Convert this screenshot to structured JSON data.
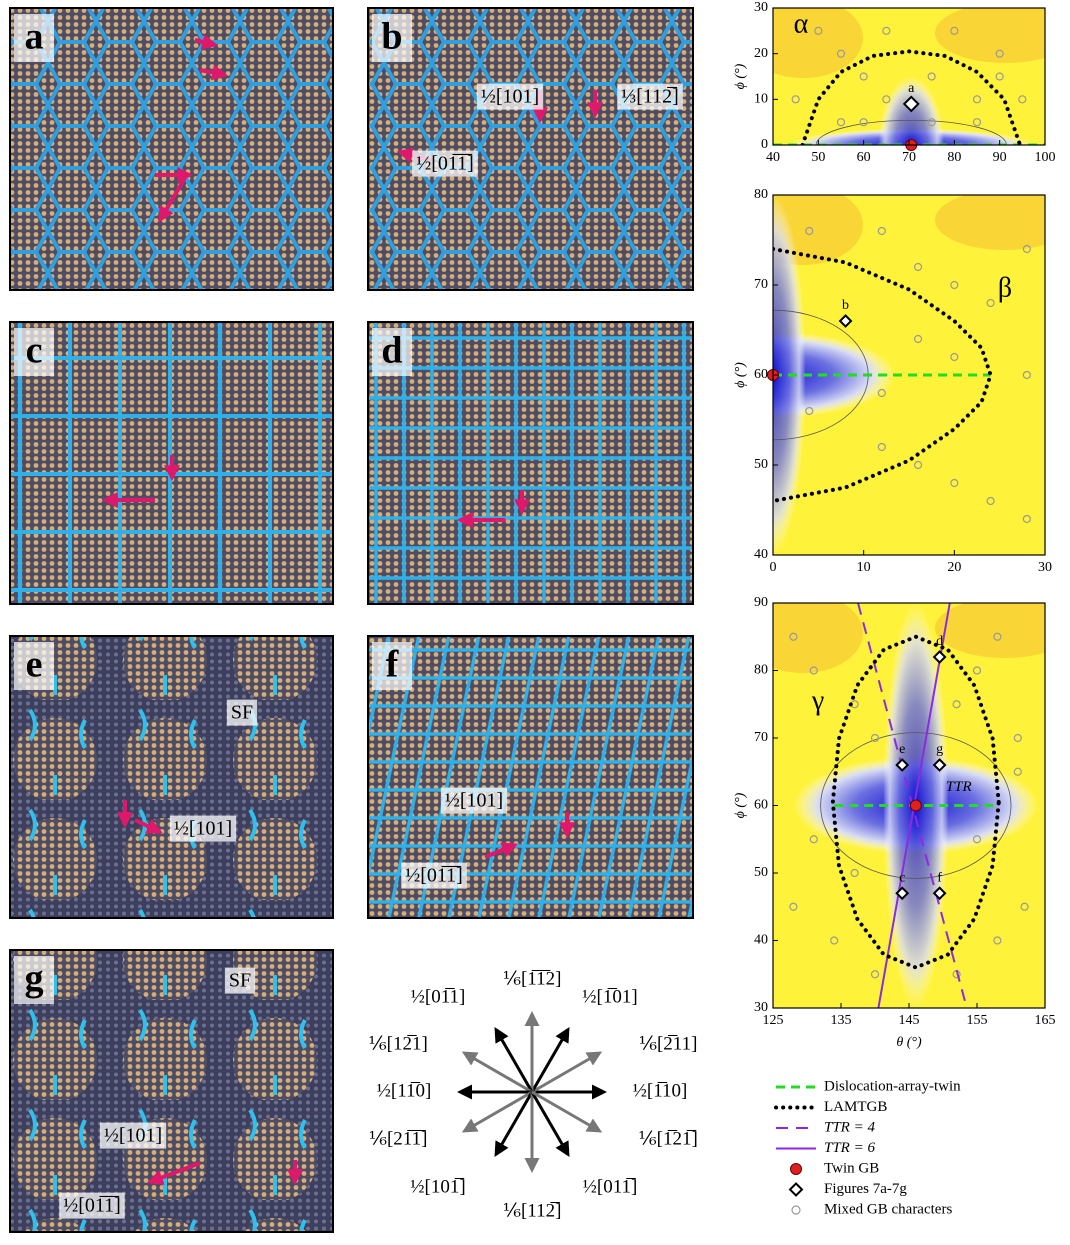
{
  "panels": [
    {
      "letter": "a",
      "labels": []
    },
    {
      "letter": "b",
      "labels": [
        "½[101]",
        "⅓[112̅]",
        "½[01̅1̅]"
      ]
    },
    {
      "letter": "c",
      "labels": []
    },
    {
      "letter": "d",
      "labels": []
    },
    {
      "letter": "e",
      "labels": [
        "SF",
        "½[101]"
      ]
    },
    {
      "letter": "f",
      "labels": [
        "½[101]",
        "½[01̅1̅]"
      ]
    },
    {
      "letter": "g",
      "labels": [
        "SF",
        "½[101]",
        "½[01̅1̅]"
      ]
    }
  ],
  "directions": [
    "⅙[1̅1̅2]",
    "½[1̅01]",
    "⅙[2̅11]",
    "½[1̅10]",
    "⅙[1̅21̅]",
    "½[011̅]",
    "⅙[112̅]",
    "½[101̅]",
    "⅙[21̅1̅]",
    "½[11̅0]",
    "⅙[12̅1]",
    "½[01̅1]"
  ],
  "chart_data": [
    {
      "type": "contour",
      "greek": "α",
      "ylabel": "ϕ (°)",
      "xlim": [
        40,
        100
      ],
      "xticks": [
        40,
        50,
        60,
        70,
        80,
        90,
        100
      ],
      "ylim": [
        0,
        30
      ],
      "yticks": [
        0,
        10,
        20,
        30
      ],
      "lamtgb": {
        "x": [
          46.5,
          50,
          55,
          62,
          70,
          78,
          85,
          91,
          94.5
        ],
        "y": [
          0,
          10,
          16,
          19.5,
          20.5,
          19.5,
          16,
          10,
          0
        ]
      },
      "twin_line": {
        "x": [
          40,
          100
        ],
        "y": [
          0,
          0
        ]
      },
      "twin_gb": {
        "x": [
          70.5
        ],
        "y": [
          0
        ]
      },
      "figures": {
        "x": [
          70.5
        ],
        "y": [
          9
        ],
        "labels": [
          "a"
        ]
      },
      "mixed": {
        "x": [
          45,
          50,
          55,
          60,
          65,
          75,
          80,
          85,
          90,
          95,
          55,
          85,
          65,
          75,
          60,
          90
        ],
        "y": [
          10,
          25,
          5,
          15,
          25,
          15,
          25,
          5,
          20,
          10,
          20,
          10,
          10,
          5,
          5,
          15
        ]
      }
    },
    {
      "type": "contour",
      "greek": "β",
      "ylabel": "ϕ (°)",
      "xlim": [
        0,
        30
      ],
      "xticks": [
        0,
        10,
        20,
        30
      ],
      "ylim": [
        40,
        80
      ],
      "yticks": [
        40,
        50,
        60,
        70,
        80
      ],
      "lamtgb": {
        "x": [
          0,
          8,
          15,
          20,
          23,
          24,
          23,
          20,
          15,
          8,
          0
        ],
        "y": [
          74,
          72.5,
          69.5,
          66,
          63,
          60,
          57,
          54,
          50.5,
          47.5,
          46
        ]
      },
      "twin_line": {
        "x": [
          0,
          24
        ],
        "y": [
          60,
          60
        ]
      },
      "twin_gb": {
        "x": [
          0
        ],
        "y": [
          60
        ]
      },
      "figures": {
        "x": [
          8
        ],
        "y": [
          66
        ],
        "labels": [
          "b"
        ]
      },
      "mixed": {
        "x": [
          4,
          12,
          16,
          20,
          24,
          28,
          12,
          16,
          20,
          24,
          28,
          4,
          12,
          20,
          28,
          16
        ],
        "y": [
          76,
          76,
          72,
          70,
          68,
          74,
          52,
          50,
          48,
          46,
          44,
          56,
          58,
          62,
          60,
          64
        ]
      }
    },
    {
      "type": "contour",
      "greek": "γ",
      "ylabel": "ϕ (°)",
      "xlabel": "θ (°)",
      "annotation": "TTR",
      "xlim": [
        125,
        165
      ],
      "xticks": [
        125,
        135,
        145,
        155,
        165
      ],
      "ylim": [
        30,
        90
      ],
      "yticks": [
        30,
        40,
        50,
        60,
        70,
        80,
        90
      ],
      "lamtgb": {
        "x": [
          158.2,
          157.3,
          154.6,
          150.7,
          146,
          141.3,
          137.4,
          134.7,
          133.8,
          134.7,
          137.4,
          141.3,
          146,
          150.7,
          154.6,
          157.3,
          158.2
        ],
        "y": [
          60.5,
          69.9,
          77.8,
          83.1,
          85,
          83.1,
          77.8,
          69.9,
          60.5,
          51.1,
          43.2,
          37.9,
          36,
          37.9,
          43.2,
          51.1,
          60.5
        ]
      },
      "twin_line": {
        "x": [
          134,
          158
        ],
        "y": [
          60,
          60
        ]
      },
      "twin_gb": {
        "x": [
          146
        ],
        "y": [
          60
        ]
      },
      "ttr4": {
        "x": [
          137.5,
          153.5
        ],
        "y": [
          90,
          30
        ]
      },
      "ttr6": {
        "x": [
          140.5,
          151
        ],
        "y": [
          30,
          90
        ]
      },
      "figures": {
        "x": [
          144,
          149.5,
          144,
          149.5,
          149.5
        ],
        "y": [
          47,
          82,
          66,
          47,
          66
        ],
        "labels": [
          "c",
          "d",
          "e",
          "f",
          "g"
        ]
      },
      "mixed": {
        "x": [
          128,
          131,
          137,
          140,
          152,
          155,
          158,
          161,
          128,
          134,
          140,
          152,
          158,
          162,
          131,
          137,
          155,
          161
        ],
        "y": [
          85,
          80,
          75,
          70,
          75,
          80,
          85,
          70,
          45,
          40,
          35,
          35,
          40,
          45,
          55,
          50,
          55,
          65
        ]
      }
    }
  ],
  "legend": [
    "Dislocation-array-twin",
    "LAMTGB",
    "TTR = 4",
    "TTR = 6",
    "Twin GB",
    "Figures 7a-7g",
    "Mixed GB characters"
  ]
}
